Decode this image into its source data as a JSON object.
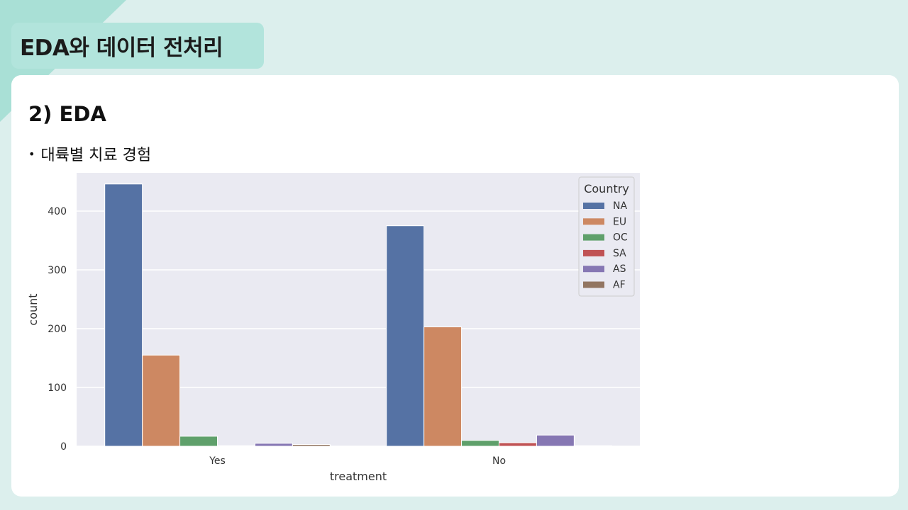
{
  "header": {
    "title": "EDA와 데이터 전처리"
  },
  "section": {
    "heading": "2) EDA",
    "bullet": "대륙별 치료 경험"
  },
  "colors": {
    "background": "#dcefed",
    "tab": "#b2e4dc",
    "corner": "#a9e0d6",
    "plot_bg": "#eaeaf2"
  },
  "chart_data": {
    "type": "bar",
    "xlabel": "treatment",
    "ylabel": "count",
    "categories": [
      "Yes",
      "No"
    ],
    "ylim": [
      0,
      465
    ],
    "yticks": [
      0,
      100,
      200,
      300,
      400
    ],
    "grid": true,
    "legend": {
      "title": "Country",
      "position": "top-right"
    },
    "series": [
      {
        "name": "NA",
        "color": "#5572a4",
        "values": [
          446,
          375
        ]
      },
      {
        "name": "EU",
        "color": "#cd8862",
        "values": [
          155,
          203
        ]
      },
      {
        "name": "OC",
        "color": "#5fa06b",
        "values": [
          17,
          10
        ]
      },
      {
        "name": "SA",
        "color": "#c05254",
        "values": [
          1,
          6
        ]
      },
      {
        "name": "AS",
        "color": "#8677b3",
        "values": [
          5,
          19
        ]
      },
      {
        "name": "AF",
        "color": "#927561",
        "values": [
          3,
          1
        ]
      }
    ]
  }
}
